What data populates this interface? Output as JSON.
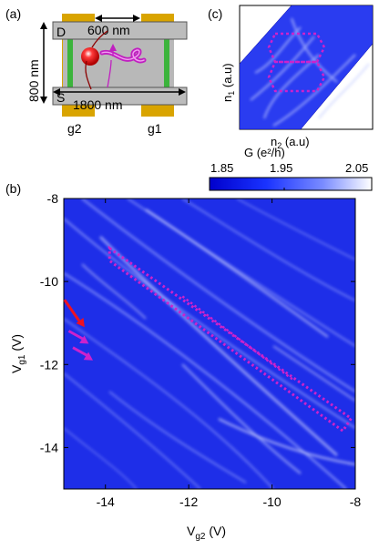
{
  "panels": {
    "a": {
      "label": "(a)",
      "top_length": "600 nm",
      "bottom_length": "1800 nm",
      "height": "800 nm",
      "drain": "D",
      "source": "S",
      "gate_left": "g2",
      "gate_right": "g1"
    },
    "c": {
      "label": "(c)",
      "ylabel": "n",
      "ylabel_sub": "1",
      "ylabel_unit": " (a.u)",
      "xlabel": "n",
      "xlabel_sub": "2",
      "xlabel_unit": " (a.u)"
    },
    "b": {
      "label": "(b)"
    }
  },
  "colorbar": {
    "label": "G (e²/h)",
    "ticks": [
      "1.85",
      "1.95",
      "2.05"
    ]
  },
  "colors": {
    "accent_magenta": "#cc22cc",
    "arrow_red": "#ee1122",
    "map_blue": "#1a2ee6",
    "gate_gold": "#d9a400"
  },
  "chart_data": {
    "type": "heatmap",
    "xlabel": "V",
    "xlabel_sub": "g2",
    "xlabel_unit": " (V)",
    "ylabel": "V",
    "ylabel_sub": "g1",
    "ylabel_unit": " (V)",
    "xlim": [
      -15,
      -8
    ],
    "ylim": [
      -15,
      -8
    ],
    "xticks": [
      -14,
      -12,
      -10,
      -8
    ],
    "yticks": [
      -14,
      -12,
      -10,
      -8
    ],
    "colorscale": {
      "min": 1.85,
      "max": 2.05
    },
    "outlined_region": {
      "corners": [
        [
          -13.9,
          -9.2
        ],
        [
          -8.1,
          -13.3
        ],
        [
          -8.3,
          -13.6
        ],
        [
          -13.9,
          -9.5
        ]
      ]
    },
    "arrows": [
      {
        "color": "red",
        "x": -14.5,
        "y": -11.1
      },
      {
        "color": "magenta",
        "x": -14.4,
        "y": -11.5
      },
      {
        "color": "magenta",
        "x": -14.3,
        "y": -11.9
      }
    ]
  }
}
